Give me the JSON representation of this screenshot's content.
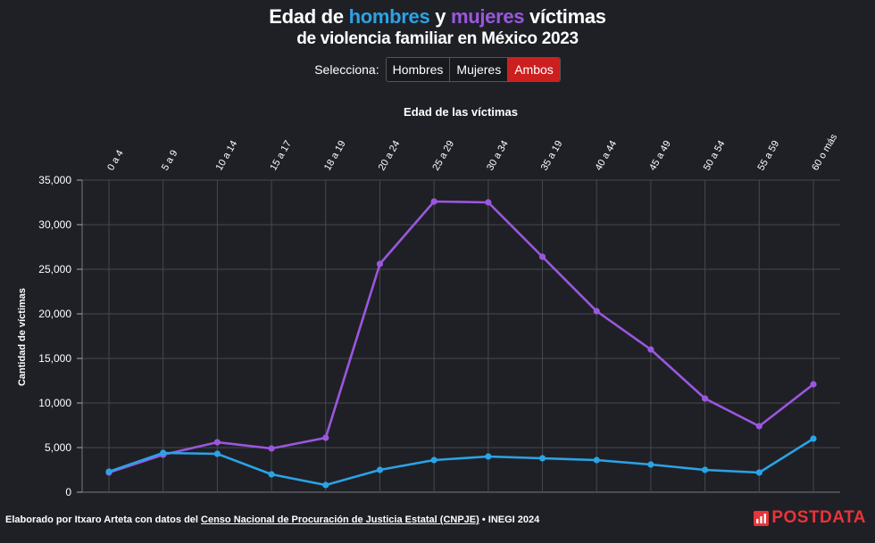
{
  "header": {
    "title_part1": "Edad de ",
    "title_hombres": "hombres",
    "title_part2": " y ",
    "title_mujeres": "mujeres",
    "title_part3": " víctimas",
    "subtitle": "de violencia familiar en México 2023"
  },
  "selector": {
    "label": "Selecciona:",
    "options": [
      "Hombres",
      "Mujeres",
      "Ambos"
    ],
    "active": "Ambos"
  },
  "colors": {
    "background": "#1f2026",
    "hombres": "#2ba3e6",
    "mujeres": "#9a57de",
    "active_button": "#cc1f1f",
    "brand": "#e8343a"
  },
  "chart_data": {
    "type": "line",
    "xlabel": "Edad de las víctimas",
    "ylabel": "Cantidad de víctimas",
    "categories": [
      "0 a 4",
      "5 a 9",
      "10 a 14",
      "15 a 17",
      "18 a 19",
      "20 a 24",
      "25 a 29",
      "30 a 34",
      "35 a 19",
      "40 a 44",
      "45 a 49",
      "50 a 54",
      "55 a 59",
      "60 o más"
    ],
    "ylim": [
      0,
      35000
    ],
    "yticks": [
      0,
      5000,
      10000,
      15000,
      20000,
      25000,
      30000,
      35000
    ],
    "ytick_labels": [
      "0",
      "5,000",
      "10,000",
      "15,000",
      "20,000",
      "25,000",
      "30,000",
      "35,000"
    ],
    "grid": true,
    "series": [
      {
        "key": "mujeres",
        "values": [
          2200,
          4200,
          5600,
          4900,
          6100,
          25600,
          32600,
          32500,
          26400,
          20300,
          16000,
          10500,
          7400,
          12100
        ]
      },
      {
        "key": "hombres",
        "values": [
          2300,
          4400,
          4300,
          2000,
          800,
          2500,
          3600,
          4000,
          3800,
          3600,
          3100,
          2500,
          2200,
          6000
        ]
      }
    ]
  },
  "footer": {
    "prefix": "Elaborado por Itxaro Arteta con datos del ",
    "link": "Censo Nacional de Procuración de Justicia Estatal (CNPJE)",
    "suffix": " • INEGI 2024"
  },
  "brand": {
    "name": "POSTDATA",
    "icon": "bar-chart-icon"
  }
}
